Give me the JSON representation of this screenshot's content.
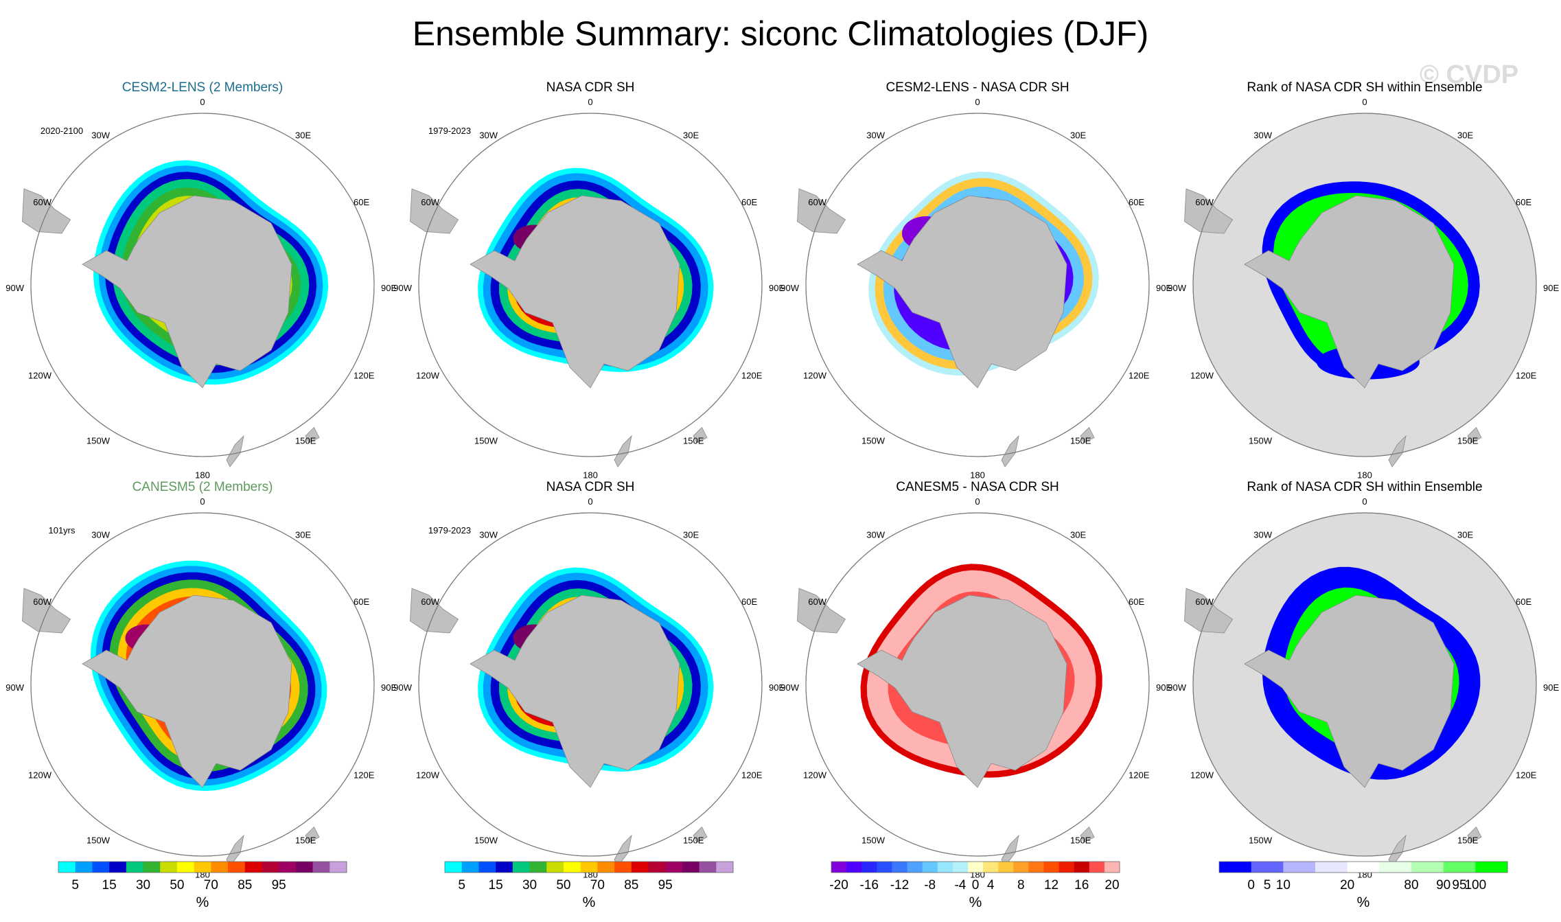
{
  "title": "Ensemble Summary: siconc Climatologies (DJF)",
  "watermark": "© CVDP",
  "colors": {
    "cesm_title": "#1a6e8f",
    "canesm_title": "#5e9a5e",
    "land": "#c0c0c0",
    "rank_background": "#dcdcdc"
  },
  "map_labels": {
    "top": "0",
    "right_top": "30E",
    "right_upper": "60E",
    "right_mid": "90E",
    "right_lower": "120E",
    "right_bottom": "150E",
    "bottom": "180",
    "left_bottom": "150W",
    "left_lower": "120W",
    "left_mid": "90W",
    "left_upper": "60W",
    "left_top": "30W"
  },
  "chart_data": [
    {
      "type": "heatmap",
      "title": "CESM2-LENS (2 Members)",
      "period": "2020-2100",
      "field": "siconc",
      "units": "%",
      "colorbar": "concentration"
    },
    {
      "type": "heatmap",
      "title": "NASA CDR SH",
      "period": "1979-2023",
      "field": "siconc",
      "units": "%",
      "colorbar": "concentration"
    },
    {
      "type": "heatmap",
      "title": "CESM2-LENS - NASA CDR SH",
      "period": "",
      "field": "siconc difference",
      "units": "%",
      "colorbar": "difference"
    },
    {
      "type": "heatmap",
      "title": "Rank of NASA CDR SH within Ensemble",
      "period": "",
      "field": "rank",
      "units": "%",
      "colorbar": "rank"
    },
    {
      "type": "heatmap",
      "title": "CANESM5 (2 Members)",
      "period": "101yrs",
      "field": "siconc",
      "units": "%",
      "colorbar": "concentration"
    },
    {
      "type": "heatmap",
      "title": "NASA CDR SH",
      "period": "1979-2023",
      "field": "siconc",
      "units": "%",
      "colorbar": "concentration"
    },
    {
      "type": "heatmap",
      "title": "CANESM5 - NASA CDR SH",
      "period": "",
      "field": "siconc difference",
      "units": "%",
      "colorbar": "difference"
    },
    {
      "type": "heatmap",
      "title": "Rank of NASA CDR SH within Ensemble",
      "period": "",
      "field": "rank",
      "units": "%",
      "colorbar": "rank"
    }
  ],
  "colorbars": {
    "concentration": {
      "unit": "%",
      "colors": [
        "#00ffff",
        "#00a0ff",
        "#0050ff",
        "#0000c8",
        "#00c87d",
        "#32b432",
        "#c8dc00",
        "#ffff00",
        "#ffc800",
        "#ff8c00",
        "#ff5000",
        "#dc0000",
        "#b40032",
        "#a00064",
        "#780064",
        "#9650a0",
        "#c8a0dc"
      ],
      "ticks": [
        {
          "label": "5",
          "boundary": 1
        },
        {
          "label": "15",
          "boundary": 3
        },
        {
          "label": "30",
          "boundary": 5
        },
        {
          "label": "50",
          "boundary": 7
        },
        {
          "label": "70",
          "boundary": 9
        },
        {
          "label": "85",
          "boundary": 11
        },
        {
          "label": "95",
          "boundary": 13
        }
      ]
    },
    "difference": {
      "unit": "%",
      "colors": [
        "#8200dc",
        "#5000ff",
        "#2828ff",
        "#2850ff",
        "#3c78ff",
        "#50a0ff",
        "#64c8ff",
        "#96e6ff",
        "#b4f0fa",
        "#ffffc8",
        "#ffe678",
        "#ffc83c",
        "#ffa028",
        "#ff7814",
        "#ff5000",
        "#f01e00",
        "#c80000",
        "#ff5050",
        "#ffb4b4"
      ],
      "ticks": [
        {
          "label": "-20",
          "boundary": 0.5
        },
        {
          "label": "-16",
          "boundary": 2.5
        },
        {
          "label": "-12",
          "boundary": 4.5
        },
        {
          "label": "-8",
          "boundary": 6.5
        },
        {
          "label": "-4",
          "boundary": 8.5
        },
        {
          "label": "0",
          "boundary": 9.5
        },
        {
          "label": "4",
          "boundary": 10.5
        },
        {
          "label": "8",
          "boundary": 12.5
        },
        {
          "label": "12",
          "boundary": 14.5
        },
        {
          "label": "16",
          "boundary": 16.5
        },
        {
          "label": "20",
          "boundary": 18.5
        }
      ]
    },
    "rank": {
      "unit": "%",
      "colors": [
        "#0000ff",
        "#6464ff",
        "#b4b4ff",
        "#e6e6ff",
        "#ffffff",
        "#e6ffe6",
        "#b4ffb4",
        "#64ff64",
        "#00ff00"
      ],
      "ticks": [
        {
          "label": "0",
          "boundary": 1
        },
        {
          "label": "5",
          "boundary": 1.5
        },
        {
          "label": "10",
          "boundary": 2
        },
        {
          "label": "20",
          "boundary": 4
        },
        {
          "label": "80",
          "boundary": 6
        },
        {
          "label": "90",
          "boundary": 7
        },
        {
          "label": "95",
          "boundary": 7.5
        },
        {
          "label": "100",
          "boundary": 8
        }
      ]
    }
  }
}
